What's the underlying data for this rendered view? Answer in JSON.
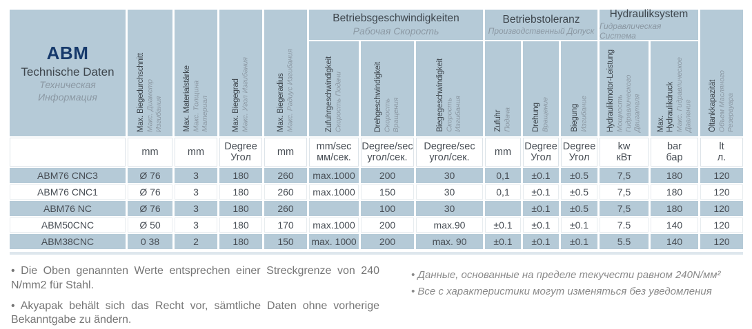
{
  "table": {
    "corner": {
      "brand": "ABM",
      "title_de": "Technische Daten",
      "title_ru": "Техническая\nИнформация"
    },
    "dim_columns": [
      {
        "de": "Max. Biegedurchschnitt",
        "ru": "Макс. Диаметр\nИзгибания"
      },
      {
        "de": "Max. Materialstärke",
        "ru": "Макс. Толщина\nМатериал"
      },
      {
        "de": "Max. Biegegrad",
        "ru": "Макс. Угол Изгибания"
      },
      {
        "de": "Max. Biegeradius",
        "ru": "Макс. Радиус Изгибания"
      }
    ],
    "groups": [
      {
        "de": "Betriebsgeschwindigkeiten",
        "ru": "Рабочая Скорость",
        "cols": [
          {
            "de": "Zufuhrgeschwindigkeit",
            "ru": "Скорость Подачи"
          },
          {
            "de": "Drehgeschwindigkeit",
            "ru": "Скорость\nВращения"
          },
          {
            "de": "Biegegeschwindigkeit",
            "ru": "Скорость\nИзгибания"
          }
        ]
      },
      {
        "de": "Betriebstoleranz",
        "ru": "Производственный Допуск",
        "cols": [
          {
            "de": "Zufuhr",
            "ru": "Подача"
          },
          {
            "de": "Drehung",
            "ru": "Вращение"
          },
          {
            "de": "Biegung",
            "ru": "Изгибание"
          }
        ]
      },
      {
        "de": "Hydrauliksystem",
        "ru": "Гидравлическая Система",
        "cols": [
          {
            "de": "Hydraulikmotor-Leistung",
            "ru": "Мощность\nГидравлического\nДвигателя"
          },
          {
            "de": "Max.\nHydraulikdruck",
            "ru": "Макс. Гидравлическое\nДавление"
          }
        ]
      }
    ],
    "tank_column": {
      "de": "Öltankkapazität",
      "ru": "Объем Масляного\nРезервуара"
    },
    "units": [
      "mm",
      "mm",
      "Degree\nУгол",
      "mm",
      "mm/sec\nмм/сек.",
      "Degree/sec\nугол/сек.",
      "Degree/sec\nугол/сек.",
      "mm",
      "Degree\nУгол",
      "Degree\nУгол",
      "kw\nкВт",
      "bar\nбар",
      "lt\nл."
    ],
    "rows": [
      {
        "model": "ABM76 CNC3",
        "v": [
          "Ø 76",
          "3",
          "180",
          "260",
          "max.1000",
          "200",
          "30",
          "0,1",
          "±0.1",
          "±0.5",
          "7,5",
          "180",
          "120"
        ]
      },
      {
        "model": "ABM76 CNC1",
        "v": [
          "Ø 76",
          "3",
          "180",
          "260",
          "max.1000",
          "150",
          "30",
          "0,1",
          "±0.1",
          "±0.5",
          "7,5",
          "180",
          "120"
        ]
      },
      {
        "model": "ABM76 NC",
        "v": [
          "Ø 76",
          "3",
          "180",
          "260",
          "",
          "100",
          "30",
          "",
          "±0.1",
          "±0.5",
          "7,5",
          "180",
          "120"
        ]
      },
      {
        "model": "ABM50CNC",
        "v": [
          "Ø 50",
          "3",
          "180",
          "170",
          "max.1000",
          "200",
          "max.90",
          "±0.1",
          "±0.1",
          "±0.1",
          "7.5",
          "140",
          "120"
        ]
      },
      {
        "model": "ABM38CNC",
        "v": [
          "0 38",
          "2",
          "180",
          "150",
          "max. 1000",
          "200",
          "max. 90",
          "±0.1",
          "±0.1",
          "±0.1",
          "5.5",
          "140",
          "120"
        ]
      }
    ]
  },
  "notes": {
    "de": [
      "Die Oben genannten Werte entsprechen einer Streckgrenze von 240 N/mm2 für Stahl.",
      "Akyapak behält sich das Recht vor, sämtliche Daten ohne vorherige Bekanntgabe zu ändern."
    ],
    "ru": [
      "Данные, основанные на пределе текучести равном 240N/мм²",
      "Все с характеристики могут изменяться без уведомления"
    ]
  },
  "colors": {
    "cell_blue": "#b5cad7",
    "brand_navy": "#16396b",
    "text_dark": "#3e464d",
    "text_gray_italic": "#8b98a3"
  }
}
